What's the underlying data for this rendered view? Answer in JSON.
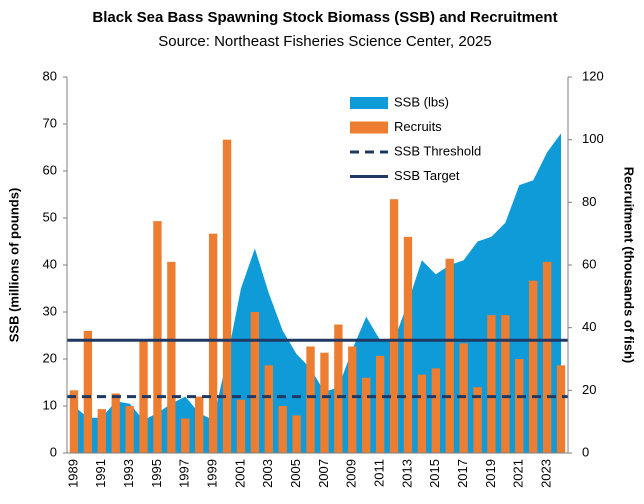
{
  "chart_data": {
    "type": "combo",
    "title": "Black Sea Bass Spawning Stock Biomass (SSB) and Recruitment",
    "subtitle": "Source: Northeast Fisheries Science Center, 2025",
    "y_label": "SSB (millions of pounds)",
    "y2_label": "Recruitment (thousands of fish)",
    "categories": [
      "1989",
      null,
      "1991",
      null,
      "1993",
      null,
      "1995",
      null,
      "1997",
      null,
      "1999",
      null,
      "2001",
      null,
      "2003",
      null,
      "2005",
      null,
      "2007",
      null,
      "2009",
      null,
      "2011",
      null,
      "2013",
      null,
      "2015",
      null,
      "2017",
      null,
      "2019",
      null,
      "2021",
      null,
      "2023",
      null
    ],
    "series": [
      {
        "name": "SSB (lbs)",
        "kind": "area",
        "axis": "y",
        "color": "#0f9ad8",
        "values": [
          10,
          7.5,
          7.5,
          11,
          10.5,
          7,
          8.5,
          10.5,
          12,
          8.5,
          7,
          20,
          35,
          43.5,
          34,
          26,
          21,
          18,
          13,
          14,
          22,
          29,
          24,
          24,
          32,
          41,
          38,
          40,
          41,
          45,
          46,
          49,
          57,
          58,
          64,
          68
        ]
      },
      {
        "name": "Recruits",
        "kind": "bar",
        "axis": "y2",
        "color": "#ed7d31",
        "values": [
          20,
          39,
          14,
          19,
          15,
          36,
          74,
          61,
          11,
          18,
          70,
          100,
          17,
          45,
          28,
          15,
          12,
          34,
          32,
          41,
          34,
          24,
          31,
          81,
          69,
          25,
          27,
          62,
          35,
          21,
          44,
          44,
          30,
          55,
          61,
          28
        ]
      }
    ],
    "reference_lines": [
      {
        "name": "SSB Threshold",
        "value": 12,
        "axis": "y",
        "color": "#1f3864",
        "style": "dashed"
      },
      {
        "name": "SSB Target",
        "value": 24,
        "axis": "y",
        "color": "#1f3864",
        "style": "solid"
      }
    ],
    "ylim": [
      0,
      80
    ],
    "yticks": [
      0,
      10,
      20,
      30,
      40,
      50,
      60,
      70,
      80
    ],
    "y2lim": [
      0,
      120
    ],
    "y2ticks": [
      0,
      20,
      40,
      60,
      80,
      100,
      120
    ],
    "legend": "upper right"
  }
}
